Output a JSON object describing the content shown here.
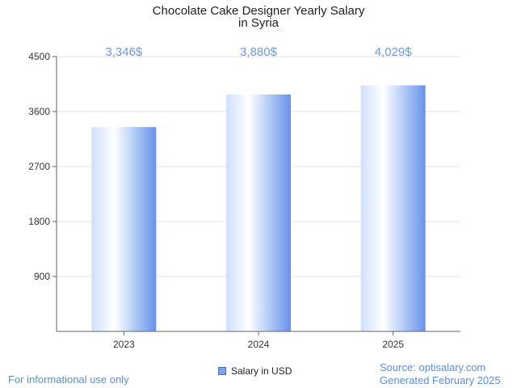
{
  "chart_data": {
    "type": "bar",
    "title_line1": "Chocolate Cake Designer Yearly Salary",
    "title_line2": "in Syria",
    "categories": [
      "2023",
      "2024",
      "2025"
    ],
    "values": [
      3346,
      3880,
      4029
    ],
    "value_labels": [
      "3,346$",
      "3,880$",
      "4,029$"
    ],
    "y_ticks": [
      900,
      1800,
      2700,
      3600,
      4500
    ],
    "y_tick_labels": [
      "900",
      "1800",
      "2700",
      "3600",
      "4500"
    ],
    "ylim": [
      0,
      4500
    ],
    "series_name": "Salary in USD",
    "legend_position": "bottom-center",
    "colors": {
      "bar_light": "#e8f1ff",
      "bar_mid": "#ffffff",
      "bar_dark": "#6e98ec",
      "label": "#6a9be0",
      "grid": "#e3e3e3",
      "axis": "#666666"
    }
  },
  "footer": {
    "disclaimer": "For informational use only",
    "source": "Source: optisalary.com",
    "generated": "Generated February 2025"
  }
}
